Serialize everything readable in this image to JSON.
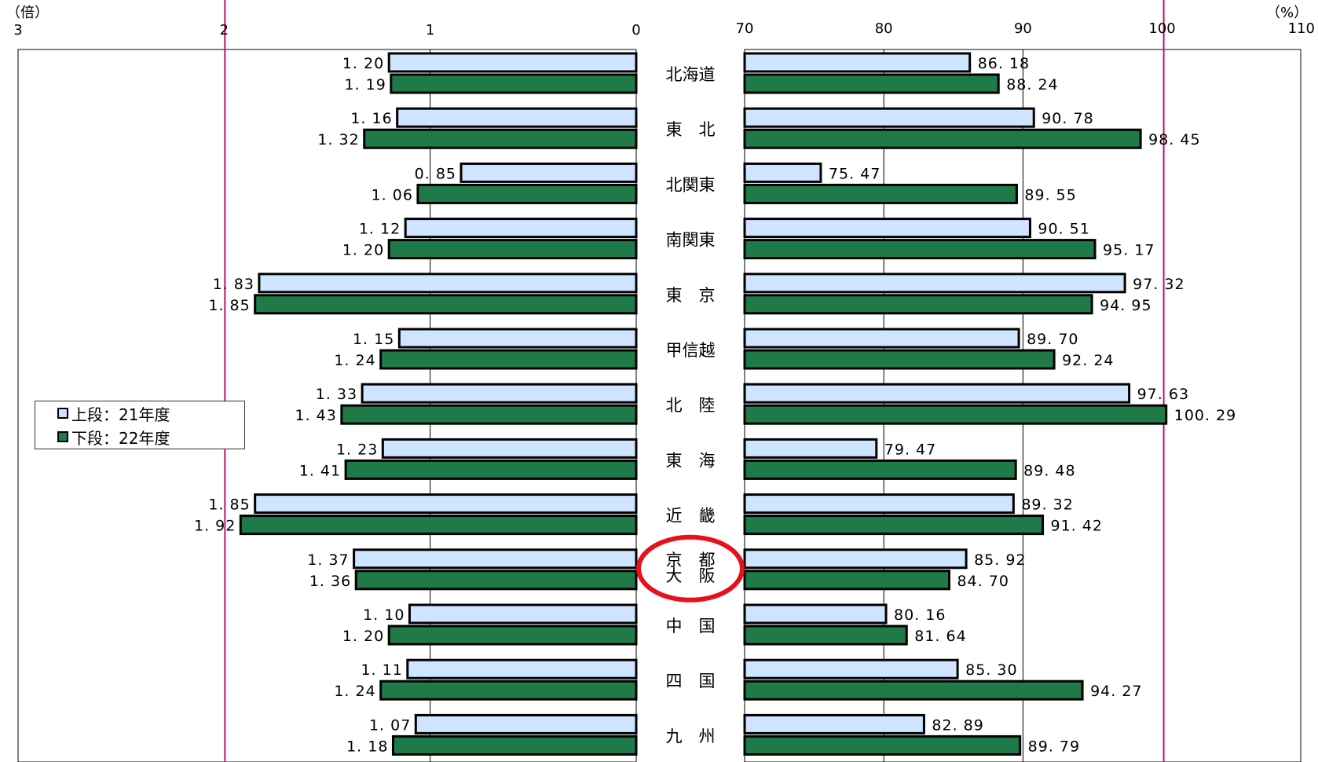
{
  "chart_data": {
    "type": "bar",
    "orientation": "horizontal",
    "categories": [
      "北海道",
      "東　北",
      "北関東",
      "南関東",
      "東　京",
      "甲信越",
      "北　陸",
      "東　海",
      "近　畿",
      "京　都|大　阪",
      "中　国",
      "四　国",
      "九　州"
    ],
    "left_panel": {
      "unit": "（倍）",
      "xlim": [
        3,
        0
      ],
      "ticks": [
        "3",
        "2",
        "1",
        "0"
      ],
      "reference_line": 2,
      "series": [
        {
          "name": "上段：21年度",
          "values": [
            1.2,
            1.16,
            0.85,
            1.12,
            1.83,
            1.15,
            1.33,
            1.23,
            1.85,
            1.37,
            1.1,
            1.11,
            1.07
          ],
          "labels": [
            "1. 20",
            "1. 16",
            "0. 85",
            "1. 12",
            "1. 83",
            "1. 15",
            "1. 33",
            "1. 23",
            "1. 85",
            "1. 37",
            "1. 10",
            "1. 11",
            "1. 07"
          ]
        },
        {
          "name": "下段：22年度",
          "values": [
            1.19,
            1.32,
            1.06,
            1.2,
            1.85,
            1.24,
            1.43,
            1.41,
            1.92,
            1.36,
            1.2,
            1.24,
            1.18
          ],
          "labels": [
            "1. 19",
            "1. 32",
            "1. 06",
            "1. 20",
            "1. 85",
            "1. 24",
            "1. 43",
            "1. 41",
            "1. 92",
            "1. 36",
            "1. 20",
            "1. 24",
            "1. 18"
          ]
        }
      ]
    },
    "right_panel": {
      "unit": "（%）",
      "xlim": [
        70,
        110
      ],
      "ticks": [
        "70",
        "80",
        "90",
        "100",
        "110"
      ],
      "reference_line": 100,
      "series": [
        {
          "name": "上段：21年度",
          "values": [
            86.18,
            90.78,
            75.47,
            90.51,
            97.32,
            89.7,
            97.63,
            79.47,
            89.32,
            85.92,
            80.16,
            85.3,
            82.89
          ],
          "labels": [
            "86. 18",
            "90. 78",
            "75. 47",
            "90. 51",
            "97. 32",
            "89. 70",
            "97. 63",
            "79. 47",
            "89. 32",
            "85. 92",
            "80. 16",
            "85. 30",
            "82. 89"
          ]
        },
        {
          "name": "下段：22年度",
          "values": [
            88.24,
            98.45,
            89.55,
            95.17,
            94.95,
            92.24,
            100.29,
            89.48,
            91.42,
            84.7,
            81.64,
            94.27,
            89.79
          ],
          "labels": [
            "88. 24",
            "98. 45",
            "89. 55",
            "95. 17",
            "94. 95",
            "92. 24",
            "100. 29",
            "89. 48",
            "91. 42",
            "84. 70",
            "81. 64",
            "94. 27",
            "89. 79"
          ]
        }
      ]
    },
    "legend": {
      "placement": "left-middle",
      "items": [
        "上段：21年度",
        "下段：22年度"
      ]
    },
    "highlight": {
      "category": "京　都|大　阪",
      "shape": "circle",
      "color": "#e8101a"
    },
    "colors": {
      "series_21": "#cfe4ff",
      "series_22": "#1f7a48",
      "bar_border": "#000000",
      "reference_line": "#c0186a",
      "gridline": "#000000"
    },
    "grid": true
  }
}
